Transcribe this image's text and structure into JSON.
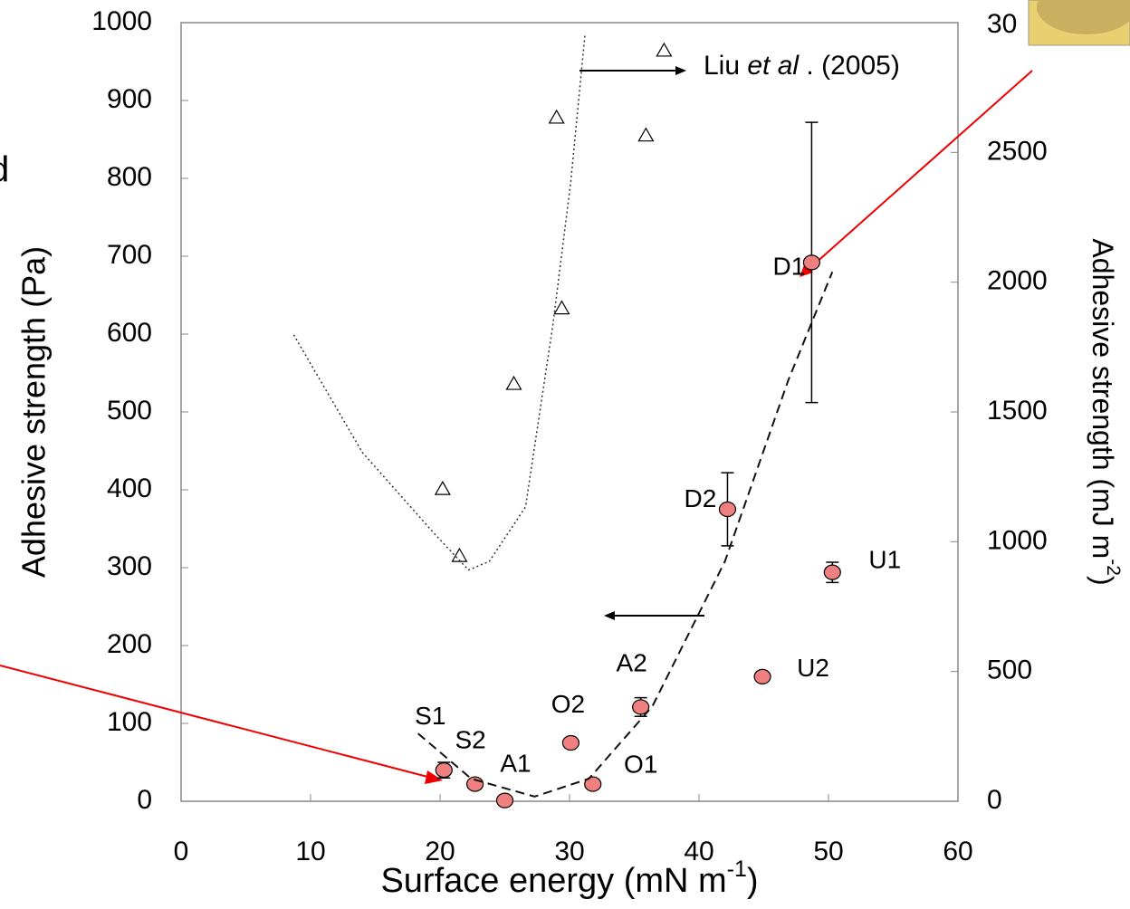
{
  "chart_data": {
    "type": "scatter",
    "x_label": {
      "text": "Surface energy  (mN m",
      "sup": "-1",
      "after": ")"
    },
    "y_label": "Adhesive strength  (Pa)",
    "y2_label": {
      "text": "Adhesive strength (mJ m",
      "sup": "-2",
      "after": ")"
    },
    "xlim": [
      0,
      60
    ],
    "xticks": [
      0,
      10,
      20,
      30,
      40,
      50,
      60
    ],
    "ylim": [
      0,
      1000
    ],
    "yticks": [
      0,
      100,
      200,
      300,
      400,
      500,
      600,
      700,
      800,
      900,
      1000
    ],
    "y2lim": [
      0,
      3000
    ],
    "y2ticks": [
      0,
      500,
      1000,
      1500,
      2000,
      2500
    ],
    "fragments": [
      "30",
      "d"
    ],
    "annotation": [
      "Liu ",
      "et al",
      " . (2005)"
    ],
    "series": [
      {
        "style": "circle",
        "color": "#f08080",
        "point_labels": [
          "S1",
          "S2",
          "A1",
          "O1",
          "O2",
          "A2",
          "D2",
          "D1",
          "U1",
          "U2"
        ],
        "x": [
          20.3,
          22.7,
          25.0,
          31.8,
          30.1,
          35.5,
          42.2,
          48.7,
          50.3,
          44.9
        ],
        "values": [
          40,
          22,
          1,
          22,
          75,
          121,
          375,
          692,
          294,
          160
        ],
        "errors": [
          10,
          null,
          null,
          null,
          null,
          12,
          47,
          180,
          13,
          null
        ]
      },
      {
        "style": "triangle",
        "color": "#ffffff",
        "x": [
          20.2,
          21.5,
          25.7,
          29.4,
          29.0,
          35.9,
          37.3
        ],
        "values": [
          401,
          315,
          536,
          633,
          878,
          855,
          964
        ]
      },
      {
        "style": "dotted",
        "color": "#333333",
        "x": [
          8.7,
          14.0,
          19.6,
          22.2,
          23.8,
          26.6,
          28.7,
          30.1,
          31.2
        ],
        "values": [
          599,
          448,
          343,
          297,
          308,
          378,
          610,
          796,
          986
        ]
      },
      {
        "style": "dashed",
        "color": "#111111",
        "x": [
          18.3,
          22.4,
          27.3,
          31.5,
          36.4,
          42.0,
          46.9,
          50.3
        ],
        "values": [
          87,
          29,
          6,
          29,
          122,
          308,
          541,
          680
        ]
      }
    ]
  }
}
